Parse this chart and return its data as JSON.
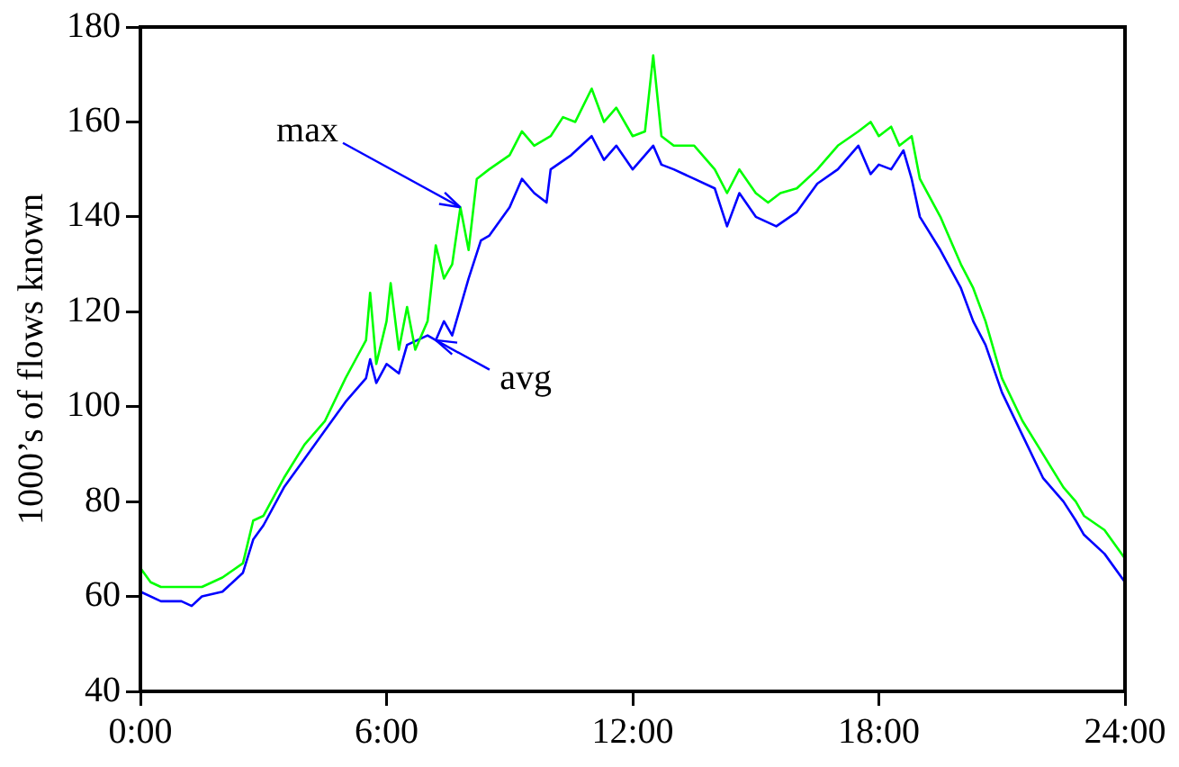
{
  "chart_data": {
    "type": "line",
    "ylabel": "1000’s of flows known",
    "xlim": [
      0,
      24
    ],
    "ylim": [
      40,
      180
    ],
    "xticks": [
      {
        "value": 0,
        "label": "0:00"
      },
      {
        "value": 6,
        "label": "6:00"
      },
      {
        "value": 12,
        "label": "12:00"
      },
      {
        "value": 18,
        "label": "18:00"
      },
      {
        "value": 24,
        "label": "24:00"
      }
    ],
    "yticks": [
      40,
      60,
      80,
      100,
      120,
      140,
      160,
      180
    ],
    "grid": false,
    "legend": false,
    "marker": "none",
    "line_style": "solid",
    "series": [
      {
        "color": "#00ff00",
        "x": [
          0,
          0.25,
          0.5,
          1,
          1.5,
          2,
          2.5,
          2.75,
          3,
          3.5,
          4,
          4.5,
          5,
          5.25,
          5.5,
          5.6,
          5.75,
          6,
          6.1,
          6.3,
          6.5,
          6.7,
          7,
          7.2,
          7.4,
          7.6,
          7.8,
          8,
          8.2,
          8.5,
          9,
          9.3,
          9.6,
          10,
          10.3,
          10.6,
          11,
          11.3,
          11.6,
          12,
          12.3,
          12.5,
          12.7,
          13,
          13.5,
          14,
          14.3,
          14.6,
          15,
          15.3,
          15.6,
          16,
          16.5,
          17,
          17.5,
          17.8,
          18,
          18.3,
          18.5,
          18.8,
          19,
          19.5,
          20,
          20.3,
          20.6,
          21,
          21.5,
          22,
          22.5,
          22.8,
          23,
          23.5,
          24
        ],
        "values": [
          66,
          63,
          62,
          62,
          62,
          64,
          67,
          76,
          77,
          85,
          92,
          97,
          106,
          110,
          114,
          124,
          109,
          118,
          126,
          112,
          121,
          112,
          118,
          134,
          127,
          130,
          142,
          133,
          148,
          150,
          153,
          158,
          155,
          157,
          161,
          160,
          167,
          160,
          163,
          157,
          158,
          174,
          157,
          155,
          155,
          150,
          145,
          150,
          145,
          143,
          145,
          146,
          150,
          155,
          158,
          160,
          157,
          159,
          155,
          157,
          148,
          140,
          130,
          125,
          118,
          106,
          97,
          90,
          83,
          80,
          77,
          74,
          68
        ]
      },
      {
        "color": "#0000ff",
        "x": [
          0,
          0.5,
          1,
          1.25,
          1.5,
          2,
          2.5,
          2.75,
          3,
          3.5,
          4,
          4.5,
          5,
          5.5,
          5.6,
          5.75,
          6,
          6.3,
          6.5,
          7,
          7.2,
          7.4,
          7.6,
          8,
          8.3,
          8.5,
          9,
          9.3,
          9.6,
          9.9,
          10,
          10.5,
          11,
          11.3,
          11.6,
          12,
          12.5,
          12.7,
          13,
          13.5,
          14,
          14.3,
          14.6,
          15,
          15.5,
          16,
          16.5,
          17,
          17.5,
          17.8,
          18,
          18.3,
          18.6,
          18.8,
          19,
          19.5,
          20,
          20.3,
          20.6,
          21,
          21.5,
          22,
          22.5,
          22.8,
          23,
          23.5,
          24
        ],
        "values": [
          61,
          59,
          59,
          58,
          60,
          61,
          65,
          72,
          75,
          83,
          89,
          95,
          101,
          106,
          110,
          105,
          109,
          107,
          113,
          115,
          114,
          118,
          115,
          127,
          135,
          136,
          142,
          148,
          145,
          143,
          150,
          153,
          157,
          152,
          155,
          150,
          155,
          151,
          150,
          148,
          146,
          138,
          145,
          140,
          138,
          141,
          147,
          150,
          155,
          149,
          151,
          150,
          154,
          148,
          140,
          133,
          125,
          118,
          113,
          103,
          94,
          85,
          80,
          76,
          73,
          69,
          63
        ]
      }
    ],
    "annotations": [
      {
        "text": "max",
        "x": 7.8,
        "y": 142
      },
      {
        "text": "avg",
        "x": 7.2,
        "y": 114
      }
    ]
  }
}
